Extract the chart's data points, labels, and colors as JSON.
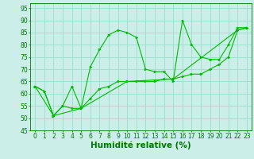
{
  "title": "",
  "xlabel": "Humidité relative (%)",
  "ylabel": "",
  "xlim": [
    -0.5,
    23.5
  ],
  "ylim": [
    45,
    97
  ],
  "yticks": [
    45,
    50,
    55,
    60,
    65,
    70,
    75,
    80,
    85,
    90,
    95
  ],
  "xticks": [
    0,
    1,
    2,
    3,
    4,
    5,
    6,
    7,
    8,
    9,
    10,
    11,
    12,
    13,
    14,
    15,
    16,
    17,
    18,
    19,
    20,
    21,
    22,
    23
  ],
  "bg_color": "#cceee8",
  "grid_color": "#99ddcc",
  "line_color": "#00bb00",
  "line1_x": [
    0,
    1,
    2,
    3,
    4,
    5,
    6,
    7,
    8,
    9,
    10,
    11,
    12,
    13,
    14,
    15,
    16,
    17,
    18,
    19,
    20,
    21,
    22,
    23
  ],
  "line1_y": [
    63,
    61,
    51,
    55,
    63,
    54,
    71,
    78,
    84,
    86,
    85,
    83,
    70,
    69,
    69,
    65,
    90,
    80,
    75,
    74,
    74,
    80,
    87,
    87
  ],
  "line2_x": [
    0,
    1,
    2,
    3,
    4,
    5,
    6,
    7,
    8,
    9,
    10,
    11,
    12,
    13,
    14,
    15,
    16,
    17,
    18,
    19,
    20,
    21,
    22,
    23
  ],
  "line2_y": [
    63,
    61,
    51,
    55,
    54,
    54,
    58,
    62,
    63,
    65,
    65,
    65,
    65,
    65,
    66,
    66,
    67,
    68,
    68,
    70,
    72,
    75,
    86,
    87
  ],
  "line3_x": [
    0,
    2,
    5,
    10,
    15,
    22,
    23
  ],
  "line3_y": [
    63,
    51,
    54,
    65,
    66,
    86,
    87
  ],
  "font_color": "#007700",
  "tick_fontsize": 5.5,
  "xlabel_fontsize": 7.5
}
